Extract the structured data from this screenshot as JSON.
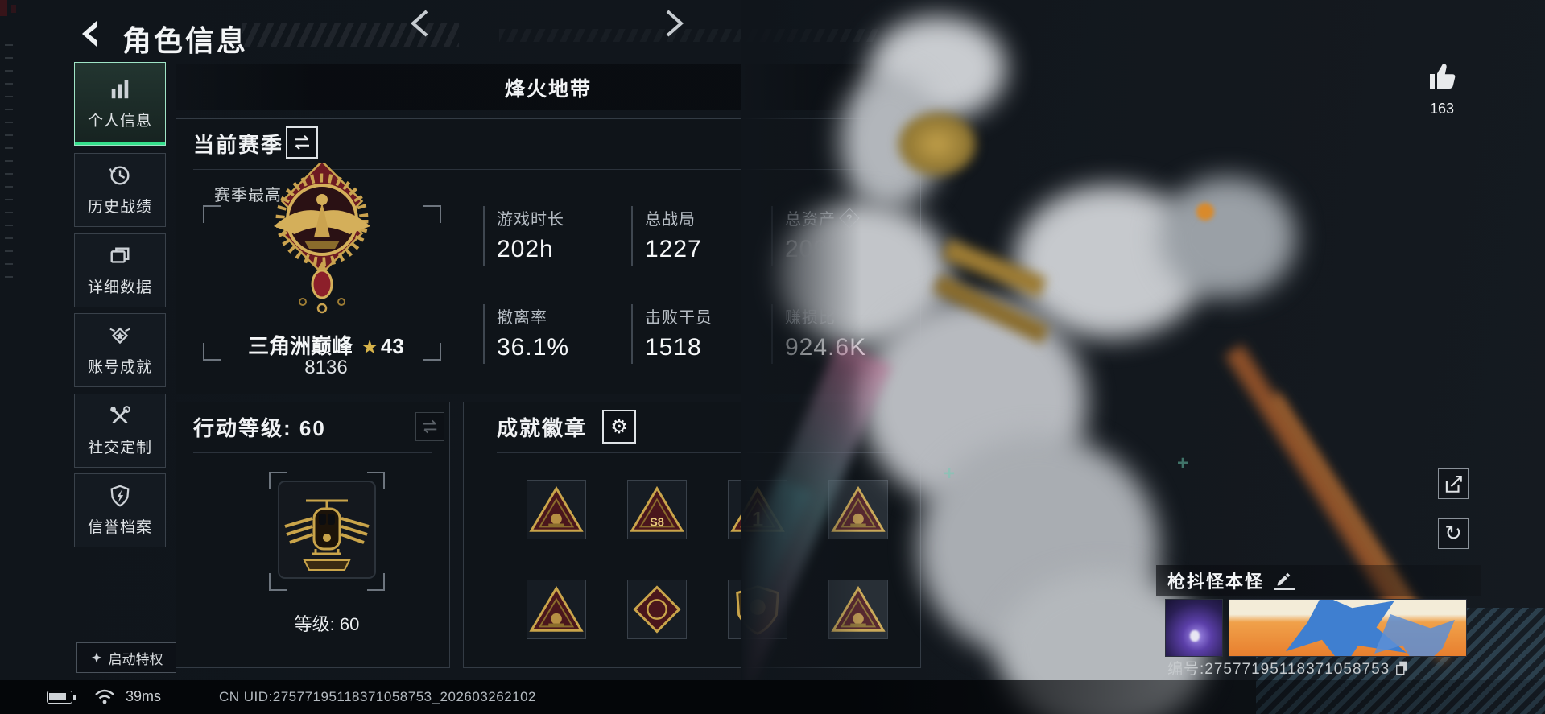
{
  "header": {
    "title": "角色信息"
  },
  "sidebar": {
    "items": [
      {
        "key": "personal-info",
        "label": "个人信息",
        "icon": "bar-chart",
        "selected": true
      },
      {
        "key": "history-record",
        "label": "历史战绩",
        "icon": "history-clock",
        "selected": false
      },
      {
        "key": "detail-data",
        "label": "详细数据",
        "icon": "folder",
        "selected": false
      },
      {
        "key": "account-achieve",
        "label": "账号成就",
        "icon": "medal",
        "selected": false
      },
      {
        "key": "social-custom",
        "label": "社交定制",
        "icon": "tools",
        "selected": false
      },
      {
        "key": "reputation-file",
        "label": "信誉档案",
        "icon": "shield-bolt",
        "selected": false
      }
    ]
  },
  "privilege": {
    "label": "启动特权"
  },
  "mode_selector": {
    "label": "烽火地带"
  },
  "season_panel": {
    "title": "当前赛季",
    "best_label": "赛季最高",
    "rank_name": "三角洲巅峰",
    "rank_star_icon": "★",
    "rank_star_level": "43",
    "rank_score": "8136",
    "stats": [
      {
        "label": "游戏时长",
        "value": "202h",
        "help": false
      },
      {
        "label": "总战局",
        "value": "1227",
        "help": false
      },
      {
        "label": "总资产",
        "value": "209.3M",
        "help": true
      },
      {
        "label": "撤离率",
        "value": "36.1%",
        "help": false
      },
      {
        "label": "击败干员",
        "value": "1518",
        "help": false
      },
      {
        "label": "赚损比",
        "value": "924.6K",
        "help": false
      }
    ],
    "help_icon_glyph": "?"
  },
  "action_panel": {
    "title": "行动等级: 60",
    "level_label": "等级: 60"
  },
  "badges_panel": {
    "title": "成就徽章",
    "gear_icon_glyph": "⚙",
    "badges": [
      {
        "name": "assault-team-badge",
        "shape": "triangle",
        "mark": "",
        "faded": false
      },
      {
        "name": "s8-season-badge",
        "shape": "triangle",
        "mark": "S8",
        "faded": false
      },
      {
        "name": "rank-one-badge",
        "shape": "triangle",
        "mark": "1",
        "faded": false
      },
      {
        "name": "dome-badge",
        "shape": "triangle",
        "mark": "",
        "faded": true
      },
      {
        "name": "aircraft-badge",
        "shape": "triangle",
        "mark": "",
        "faded": false
      },
      {
        "name": "dragon-badge",
        "shape": "diamond",
        "mark": "",
        "faded": false
      },
      {
        "name": "lion-shield-badge",
        "shape": "shield",
        "mark": "",
        "faded": false
      },
      {
        "name": "stronghold-badge",
        "shape": "triangle",
        "mark": "",
        "faded": true
      }
    ]
  },
  "character": {
    "likes": "163",
    "name": "枪抖怪本怪",
    "id_label": "编号:27577195118371058753"
  },
  "status_bar": {
    "ping": "39ms",
    "uid": "CN UID:27577195118371058753_202603262102"
  },
  "icons": {
    "refresh_glyph": "↻"
  },
  "colors": {
    "accent_green": "#35e08c",
    "gold": "#c9a44a",
    "dark_red": "#4a161c"
  }
}
